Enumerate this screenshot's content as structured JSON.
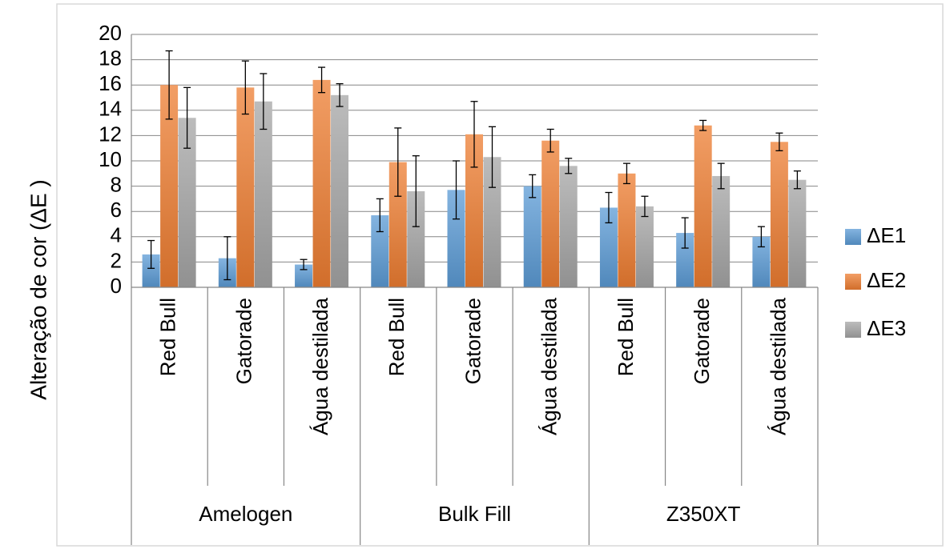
{
  "chart_data": {
    "type": "bar",
    "ylabel": "Alteração de cor (ΔE )",
    "ylim": [
      0,
      20
    ],
    "yticks": [
      0,
      2,
      4,
      6,
      8,
      10,
      12,
      14,
      16,
      18,
      20
    ],
    "grid": true,
    "legend_position": "right",
    "groups": [
      {
        "label": "Amelogen",
        "categories": [
          "Red Bull",
          "Gatorade",
          "Água destilada"
        ]
      },
      {
        "label": "Bulk Fill",
        "categories": [
          "Red Bull",
          "Gatorade",
          "Água destilada"
        ]
      },
      {
        "label": "Z350XT",
        "categories": [
          "Red Bull",
          "Gatorade",
          "Água destilada"
        ]
      }
    ],
    "series": [
      {
        "name": "ΔE1",
        "color": "#5b9bd5",
        "values": [
          2.6,
          2.3,
          1.8,
          5.7,
          7.7,
          8.0,
          6.3,
          4.3,
          4.0
        ],
        "errors": [
          1.1,
          1.7,
          0.4,
          1.3,
          2.3,
          0.9,
          1.2,
          1.2,
          0.8
        ]
      },
      {
        "name": "ΔE2",
        "color": "#ed7d31",
        "values": [
          16.0,
          15.8,
          16.4,
          9.9,
          12.1,
          11.6,
          9.0,
          12.8,
          11.5
        ],
        "errors": [
          2.7,
          2.1,
          1.0,
          2.7,
          2.6,
          0.9,
          0.8,
          0.4,
          0.7
        ]
      },
      {
        "name": "ΔE3",
        "color": "#a5a5a5",
        "values": [
          13.4,
          14.7,
          15.2,
          7.6,
          10.3,
          9.6,
          6.4,
          8.8,
          8.5
        ],
        "errors": [
          2.4,
          2.2,
          0.9,
          2.8,
          2.4,
          0.6,
          0.8,
          1.0,
          0.7
        ]
      }
    ]
  }
}
